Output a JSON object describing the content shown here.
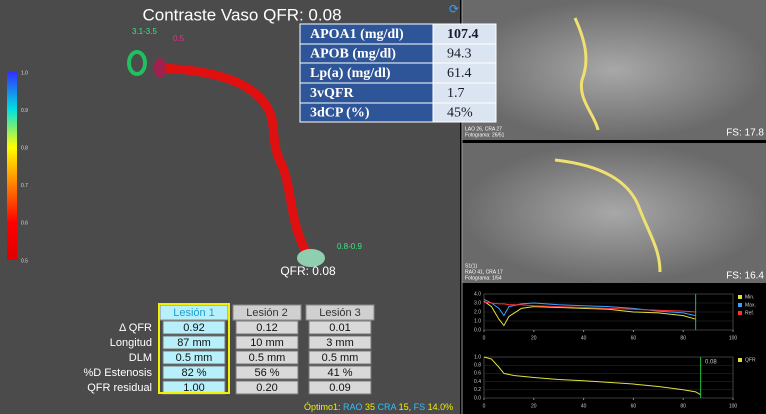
{
  "title": "Contraste Vaso QFR: 0.08",
  "info_table": {
    "rows": [
      [
        "APOA1 (mg/dl)",
        "107.4"
      ],
      [
        "APOB (mg/dl)",
        "94.3"
      ],
      [
        "Lp(a) (mg/dl)",
        "61.4"
      ],
      [
        "3vQFR",
        "1.7"
      ],
      [
        "3dCP (%)",
        "45%"
      ]
    ]
  },
  "color_scale": {
    "labels": [
      "1.0",
      "0.9",
      "0.8",
      "0.7",
      "0.6",
      "0.5"
    ]
  },
  "vessel_labels": {
    "proximal": "3.1-3.5",
    "marker": "0.5",
    "distal": "0.8-0.9",
    "qfr": "QFR: 0.08"
  },
  "lesion_table": {
    "headers": [
      "Lesión 1",
      "Lesión 2",
      "Lesión 3"
    ],
    "row_labels": [
      "Δ QFR",
      "Longitud",
      "DLM",
      "%D Estenosis",
      "QFR residual"
    ],
    "rows": [
      [
        "0.92",
        "0.12",
        "0.01"
      ],
      [
        "87 mm",
        "10 mm",
        "3 mm"
      ],
      [
        "0.5 mm",
        "0.5 mm",
        "0.5 mm"
      ],
      [
        "82 %",
        "56 %",
        "41 %"
      ],
      [
        "1.00",
        "0.20",
        "0.09"
      ]
    ]
  },
  "footer": [
    "Óptimo1: ",
    "RAO",
    " 35 ",
    "CRA",
    " 15, ",
    "FS",
    " 14.0%"
  ],
  "angiograms": [
    {
      "info": [
        "LAO 26, CRA 27",
        "Fotograma: 26/51"
      ],
      "fs": "FS: 17.8"
    },
    {
      "info": [
        "S1(1)",
        "RAO 41, CRA 17",
        "Fotograma: 1/54"
      ],
      "fs": "FS: 16.4"
    }
  ],
  "diameter_graph": {
    "ylim": [
      0,
      4
    ],
    "yticks": [
      "0.0",
      "1.0",
      "2.0",
      "3.0",
      "4.0"
    ],
    "ytick_values": [
      0,
      1,
      2,
      3,
      4
    ],
    "xlim": [
      0,
      100
    ],
    "xticks": [
      0,
      20,
      40,
      60,
      80,
      100
    ],
    "x": [
      0,
      3,
      6,
      8,
      10,
      15,
      20,
      30,
      40,
      50,
      60,
      70,
      80,
      85
    ],
    "series": [
      {
        "name": "Min.",
        "color": "#e0e040",
        "values": [
          3.2,
          2.6,
          1.2,
          0.5,
          1.5,
          2.4,
          2.6,
          2.5,
          2.4,
          2.3,
          2.0,
          1.9,
          1.6,
          1.2
        ]
      },
      {
        "name": "Max.",
        "color": "#3aa0ff",
        "values": [
          3.4,
          3.0,
          2.4,
          1.6,
          2.6,
          2.9,
          3.0,
          2.8,
          2.7,
          2.6,
          2.4,
          2.1,
          1.9,
          1.6
        ]
      },
      {
        "name": "Ref.",
        "color": "#ff3030",
        "values": [
          3.1,
          3.0,
          2.9,
          2.9,
          2.8,
          2.8,
          2.7,
          2.6,
          2.5,
          2.4,
          2.3,
          2.2,
          2.1,
          2.0
        ]
      }
    ]
  },
  "qfr_graph": {
    "ylim": [
      0,
      1
    ],
    "yticks": [
      "0.0",
      "0.2",
      "0.4",
      "0.6",
      "0.8",
      "1.0"
    ],
    "ytick_values": [
      0,
      0.2,
      0.4,
      0.6,
      0.8,
      1
    ],
    "xlim": [
      0,
      100
    ],
    "xticks": [
      0,
      20,
      40,
      60,
      80,
      100
    ],
    "x": [
      0,
      3,
      6,
      8,
      12,
      20,
      30,
      40,
      50,
      60,
      70,
      80,
      85,
      87
    ],
    "series": [
      {
        "name": "QFR",
        "color": "#e0e040",
        "values": [
          1.0,
          0.95,
          0.75,
          0.6,
          0.55,
          0.5,
          0.45,
          0.42,
          0.38,
          0.34,
          0.28,
          0.2,
          0.15,
          0.08
        ]
      }
    ],
    "annotation": "0.08"
  }
}
